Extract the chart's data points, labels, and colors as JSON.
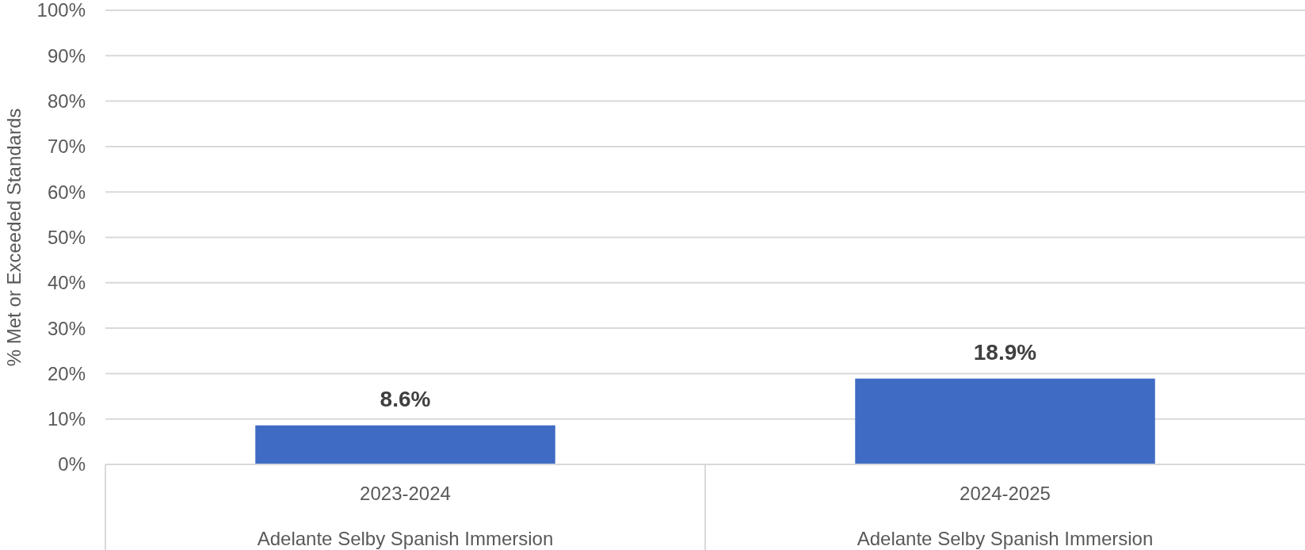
{
  "chart_data": {
    "type": "bar",
    "categories": [
      "2023-2024\nAdelante Selby Spanish Immersion",
      "2024-2025\nAdelante Selby Spanish Immersion"
    ],
    "values": [
      8.6,
      18.9
    ],
    "color": "#3f6bc4",
    "value_labels": [
      "8.6%",
      "18.9%"
    ],
    "ylabel": "% Met or Exceeded Standards",
    "ylim": [
      0,
      100
    ],
    "yticks": [
      {
        "value": 0,
        "label": "0%"
      },
      {
        "value": 10,
        "label": "10%"
      },
      {
        "value": 20,
        "label": "20%"
      },
      {
        "value": 30,
        "label": "30%"
      },
      {
        "value": 40,
        "label": "40%"
      },
      {
        "value": 50,
        "label": "50%"
      },
      {
        "value": 60,
        "label": "60%"
      },
      {
        "value": 70,
        "label": "70%"
      },
      {
        "value": 80,
        "label": "80%"
      },
      {
        "value": 90,
        "label": "90%"
      },
      {
        "value": 100,
        "label": "100%"
      }
    ],
    "grid": "y"
  }
}
